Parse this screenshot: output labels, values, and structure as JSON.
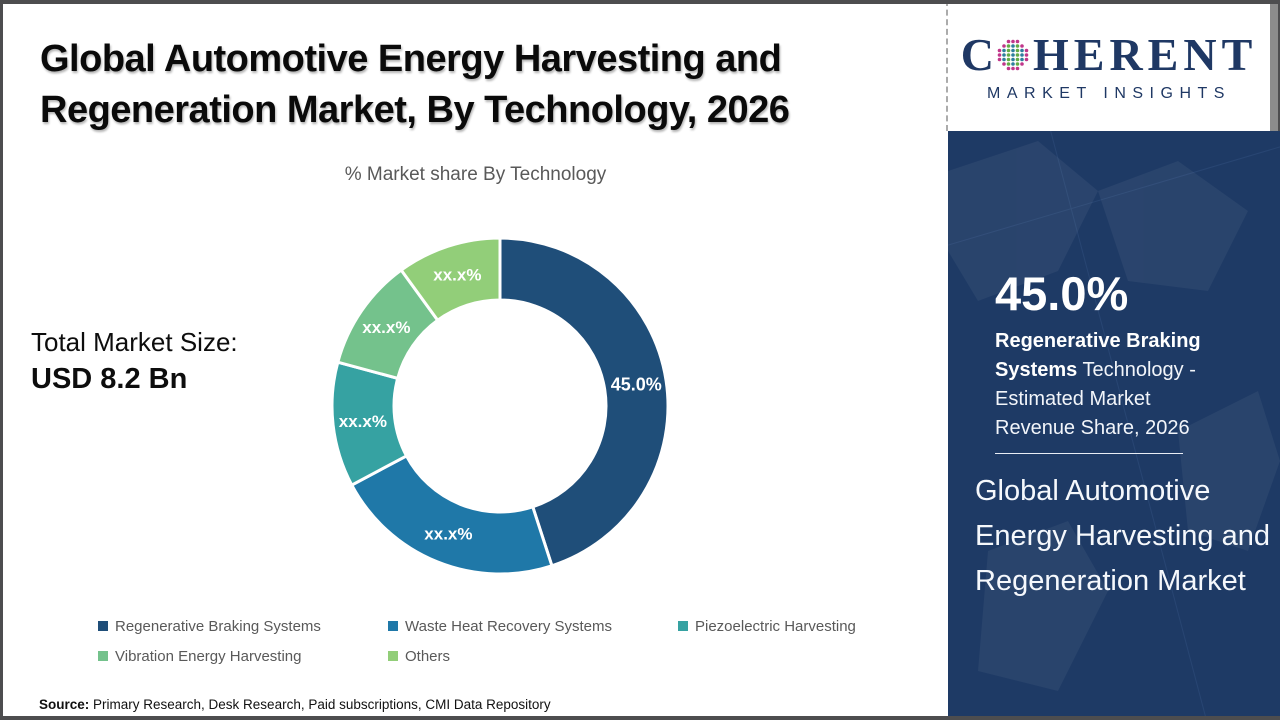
{
  "title": {
    "line1": "Global Automotive Energy Harvesting and",
    "line2": "Regeneration Market, By Technology, 2026"
  },
  "subtitle": "% Market share By Technology",
  "total_market": {
    "label": "Total Market Size:",
    "value": "USD 8.2 Bn"
  },
  "chart_data": {
    "type": "pie",
    "donut": true,
    "title": "% Market share By Technology",
    "start_angle_deg": 0,
    "direction": "clockwise",
    "segments": [
      {
        "label": "Regenerative Braking Systems",
        "value": 45.0,
        "display": "45.0%",
        "color": "#1F4E79"
      },
      {
        "label": "Waste Heat Recovery Systems",
        "value": 22.2,
        "display": "xx.x%",
        "color": "#1F78A8"
      },
      {
        "label": "Piezoelectric Harvesting",
        "value": 12.0,
        "display": "xx.x%",
        "color": "#36A2A2"
      },
      {
        "label": "Vibration Energy Harvesting",
        "value": 10.8,
        "display": "xx.x%",
        "color": "#74C28C"
      },
      {
        "label": "Others",
        "value": 10.0,
        "display": "xx.x%",
        "color": "#92CE79"
      }
    ],
    "legend_position": "bottom"
  },
  "sidebar": {
    "stat_value": "45.0%",
    "stat_label_bold": "Regenerative Braking Systems",
    "stat_label_rest": " Technology - Estimated Market Revenue Share, 2026",
    "market_name": "Global Automotive Energy Harvesting and Regeneration Market",
    "background_color": "#1E3A65"
  },
  "logo": {
    "brand_prefix": "C",
    "brand_suffix": "HERENT",
    "brand_subtitle": "MARKET INSIGHTS",
    "text_color": "#1F3864",
    "globe_colors": {
      "outer": "#C0368A",
      "teal": "#2E7F9D",
      "green": "#62AB45"
    }
  },
  "source": {
    "label": "Source:",
    "text": " Primary Research, Desk Research, Paid subscriptions, CMI Data Repository"
  }
}
